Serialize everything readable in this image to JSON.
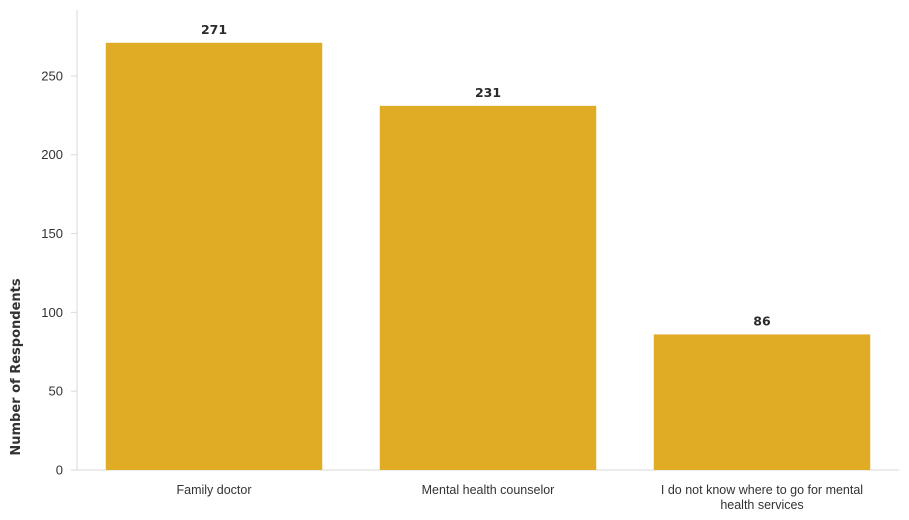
{
  "chart_data": {
    "type": "bar",
    "categories": [
      [
        "Family doctor"
      ],
      [
        "Mental health counselor"
      ],
      [
        "I do not know where to go for mental",
        "health services"
      ]
    ],
    "values": [
      271,
      231,
      86
    ],
    "data_labels": [
      "271",
      "231",
      "86"
    ],
    "xlabel": "",
    "ylabel": "Number of Respondents",
    "ylim": [
      0,
      285
    ],
    "yticks": [
      0,
      50,
      100,
      150,
      200,
      250
    ],
    "grid": false,
    "legend": "none",
    "bar_color": "#E0AB25"
  }
}
